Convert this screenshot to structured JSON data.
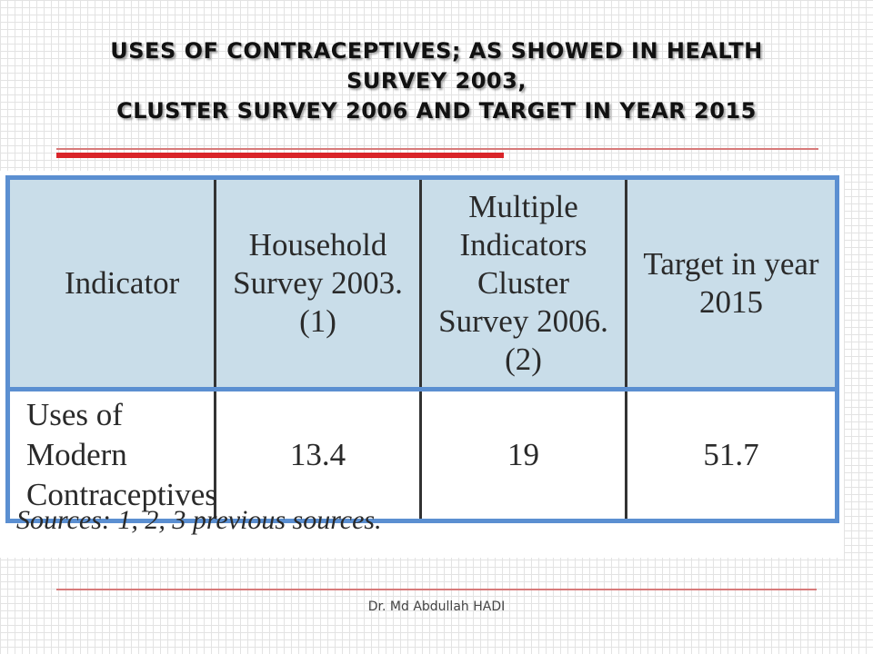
{
  "slide": {
    "title_lines": [
      "USES OF CONTRACEPTIVES; AS SHOWED IN HEALTH",
      "SURVEY 2003,",
      "CLUSTER SURVEY 2006 AND TARGET IN YEAR 2015"
    ],
    "accent_color": "#d9252a",
    "footer": "Dr. Md Abdullah HADI"
  },
  "table": {
    "headers": [
      "Indicator",
      "Household Survey 2003. (1)",
      "Multiple Indicators Cluster Survey 2006. (2)",
      "Target in year 2015"
    ],
    "rows": [
      {
        "indicator": "Uses of Modern Contraceptives",
        "values": [
          "13.4",
          "19",
          "51.7"
        ]
      }
    ],
    "header_bg": "#c9dde9",
    "border_color": "#5b8fd1",
    "sources": "Sources: 1, 2, 3 previous sources."
  }
}
